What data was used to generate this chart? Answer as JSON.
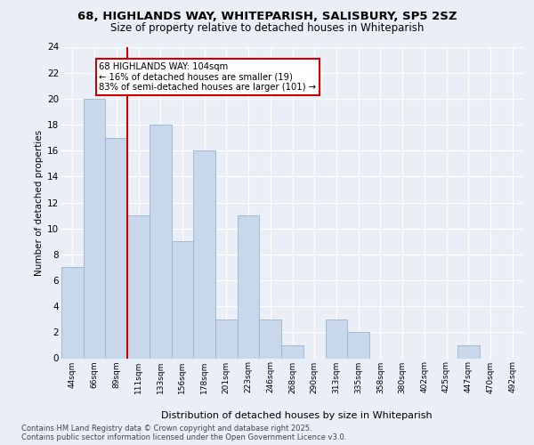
{
  "title_line1": "68, HIGHLANDS WAY, WHITEPARISH, SALISBURY, SP5 2SZ",
  "title_line2": "Size of property relative to detached houses in Whiteparish",
  "xlabel": "Distribution of detached houses by size in Whiteparish",
  "ylabel": "Number of detached properties",
  "categories": [
    "44sqm",
    "66sqm",
    "89sqm",
    "111sqm",
    "133sqm",
    "156sqm",
    "178sqm",
    "201sqm",
    "223sqm",
    "246sqm",
    "268sqm",
    "290sqm",
    "313sqm",
    "335sqm",
    "358sqm",
    "380sqm",
    "402sqm",
    "425sqm",
    "447sqm",
    "470sqm",
    "492sqm"
  ],
  "values": [
    7,
    20,
    17,
    11,
    18,
    9,
    16,
    3,
    11,
    3,
    1,
    0,
    3,
    2,
    0,
    0,
    0,
    0,
    1,
    0,
    0
  ],
  "bar_color": "#c8d8ea",
  "bar_edge_color": "#9ab4cc",
  "red_line_index": 2,
  "annotation_text": "68 HIGHLANDS WAY: 104sqm\n← 16% of detached houses are smaller (19)\n83% of semi-detached houses are larger (101) →",
  "annotation_box_color": "#ffffff",
  "annotation_box_edge": "#cc0000",
  "ylim": [
    0,
    24
  ],
  "yticks": [
    0,
    2,
    4,
    6,
    8,
    10,
    12,
    14,
    16,
    18,
    20,
    22,
    24
  ],
  "background_color": "#eaeff7",
  "plot_background_color": "#eaeff7",
  "footer_line1": "Contains HM Land Registry data © Crown copyright and database right 2025.",
  "footer_line2": "Contains public sector information licensed under the Open Government Licence v3.0."
}
